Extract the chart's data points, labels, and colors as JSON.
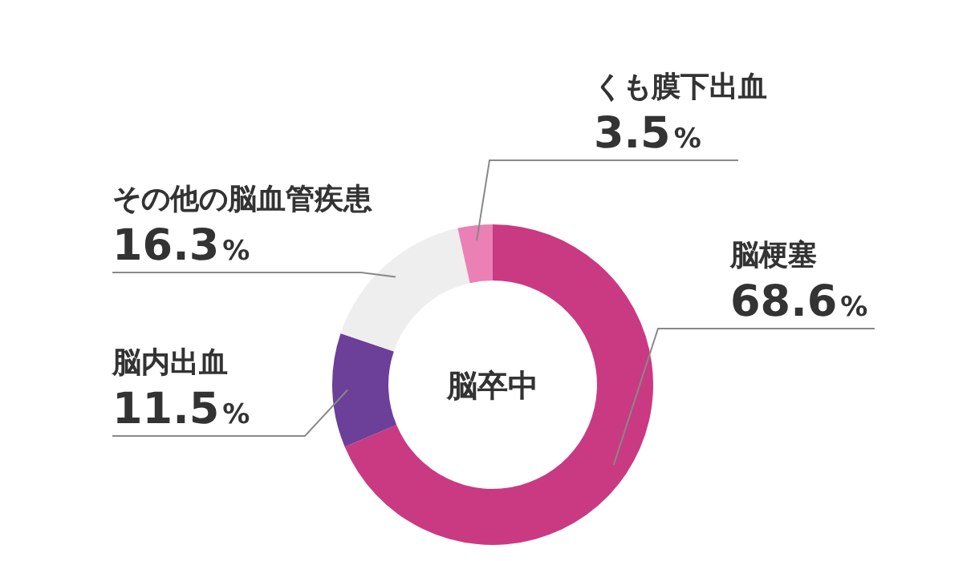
{
  "chart_data": {
    "type": "donut",
    "title": "脳卒中",
    "categories": [
      "脳梗塞",
      "脳内出血",
      "その他の脳血管疾患",
      "くも膜下出血"
    ],
    "values": [
      68.6,
      11.5,
      16.3,
      3.5
    ],
    "colors": [
      "#c93a82",
      "#6c3f98",
      "#eeeeee",
      "#ea80b4"
    ],
    "value_labels": [
      "68.6%",
      "11.5%",
      "16.3%",
      "3.5%"
    ]
  }
}
